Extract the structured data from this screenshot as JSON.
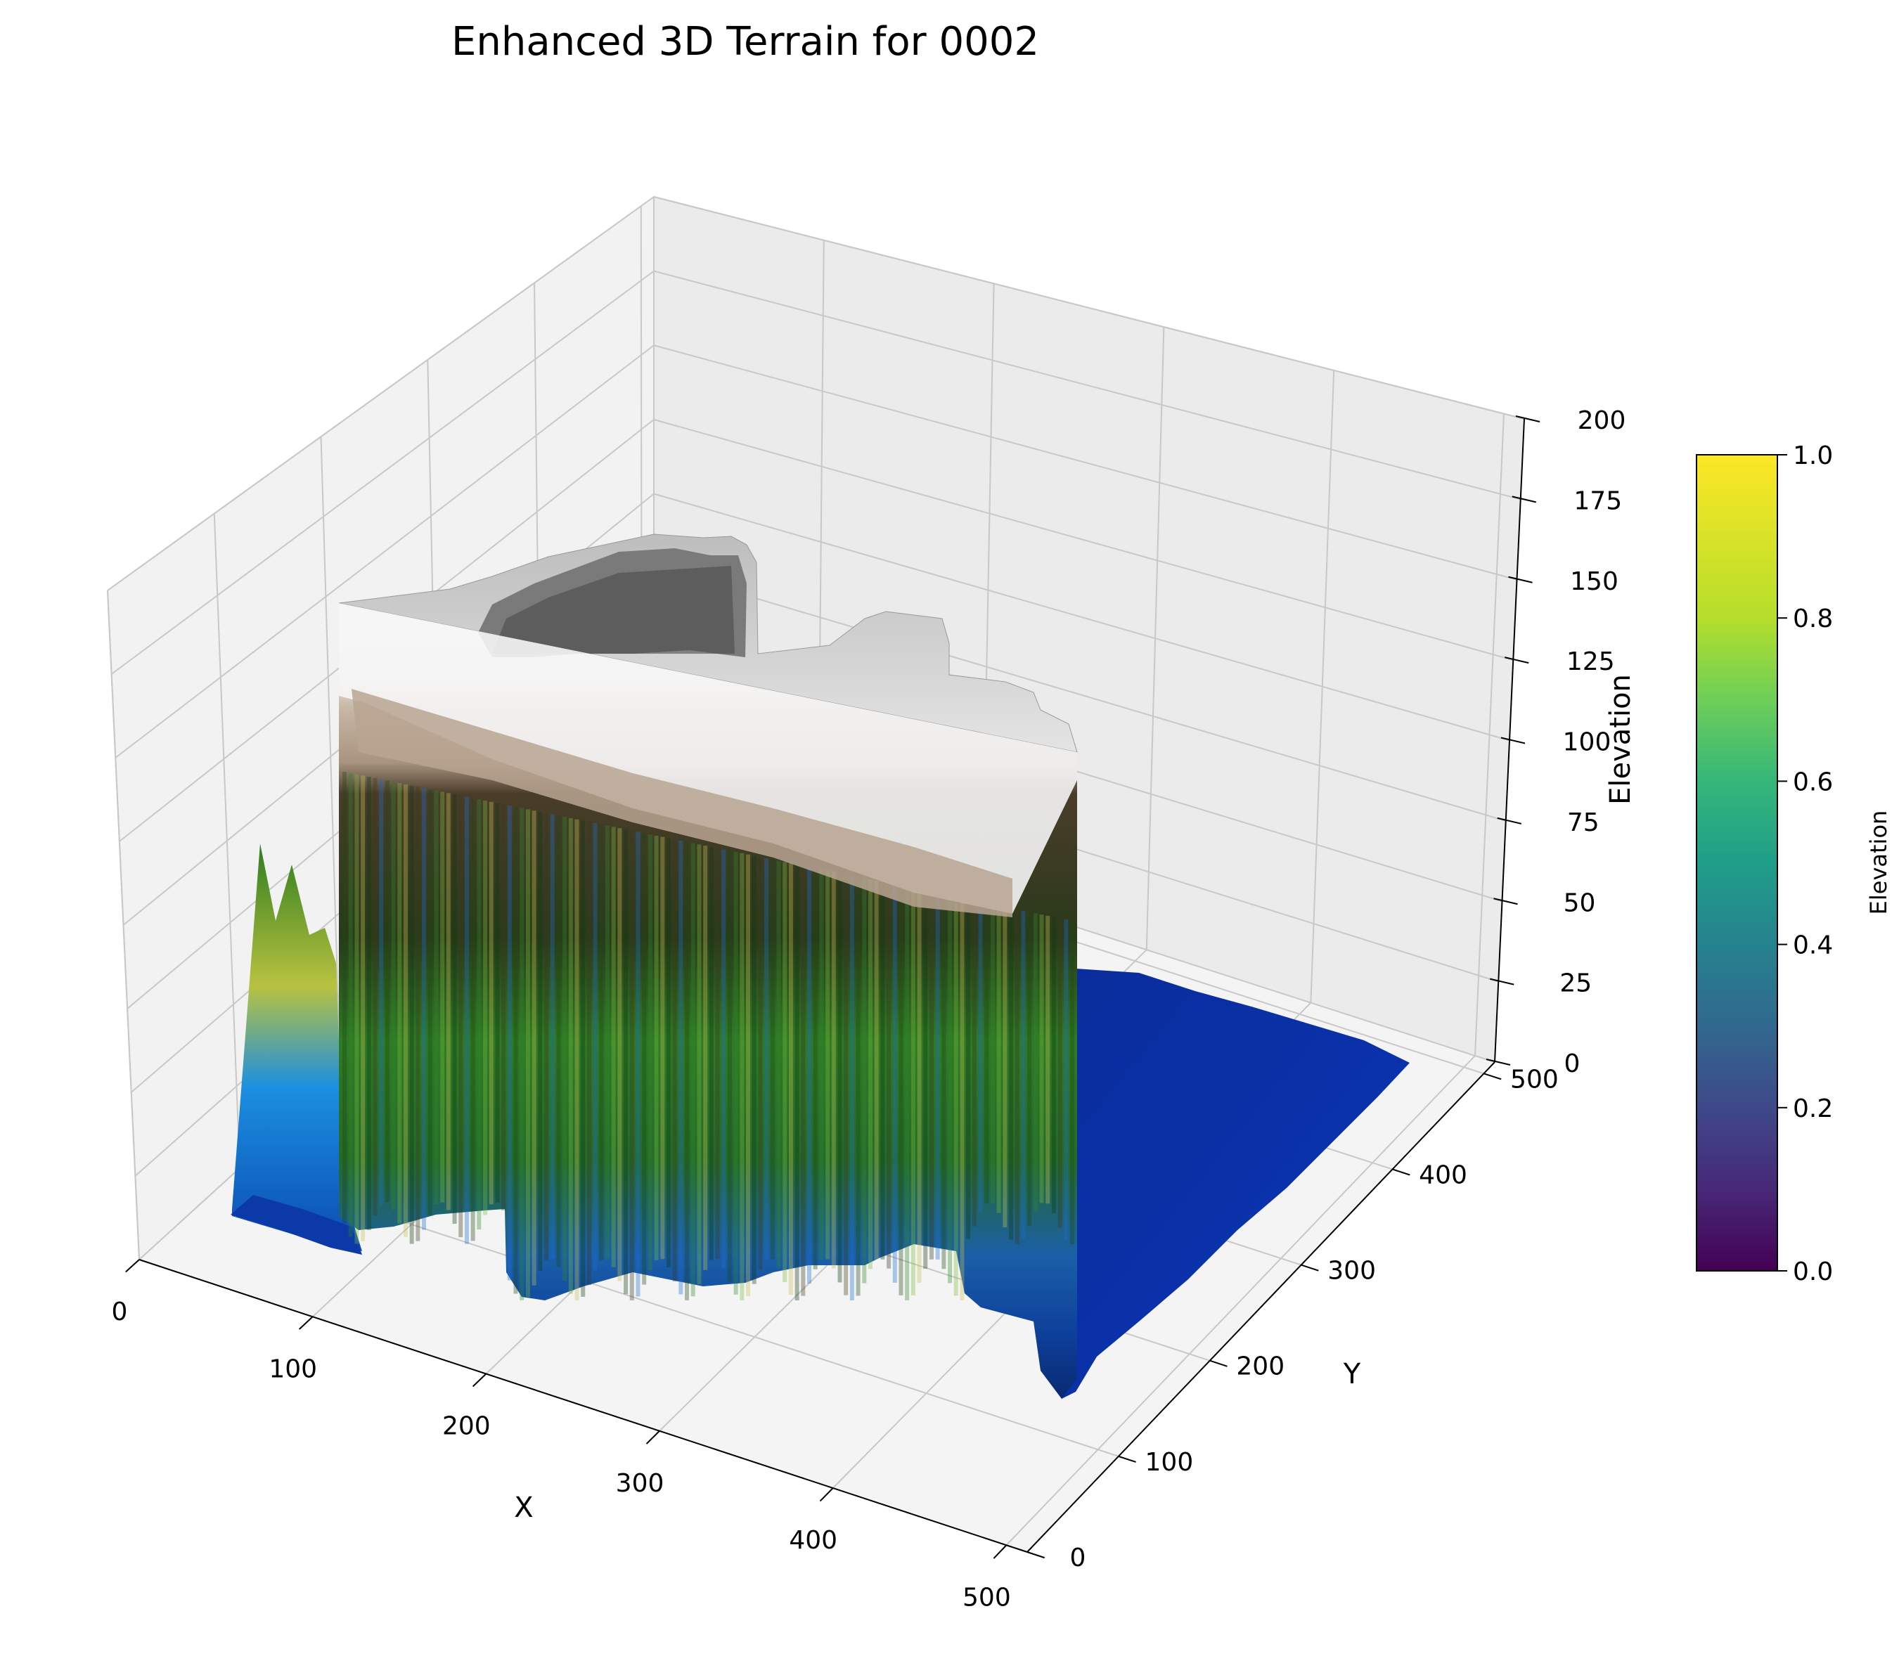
{
  "chart_data": {
    "type": "surface3d",
    "title": "Enhanced 3D Terrain for 0002",
    "xlabel": "X",
    "ylabel": "Y",
    "zlabel": "Elevation",
    "xlim": [
      0,
      512
    ],
    "ylim": [
      0,
      512
    ],
    "zlim": [
      0,
      200
    ],
    "x_ticks": [
      "0",
      "100",
      "200",
      "300",
      "400",
      "500"
    ],
    "y_ticks": [
      "0",
      "100",
      "200",
      "300",
      "400",
      "500"
    ],
    "z_ticks": [
      "0",
      "25",
      "50",
      "75",
      "100",
      "125",
      "150",
      "175",
      "200"
    ],
    "grid": true,
    "surface_colormap": "terrain",
    "surface": {
      "plateau_top_elevation": 150,
      "plateau_base_elevation": 5,
      "lowland_elevation": 5,
      "note_regions": [
        "water (blue)",
        "vegetation (green/yellow)",
        "rock (brown/grey)",
        "snow (white)"
      ]
    },
    "colorbar": {
      "label": "Elevation",
      "colormap": "viridis",
      "range": [
        0.0,
        1.0
      ],
      "ticks": [
        "0.0",
        "0.2",
        "0.4",
        "0.6",
        "0.8",
        "1.0"
      ]
    }
  }
}
